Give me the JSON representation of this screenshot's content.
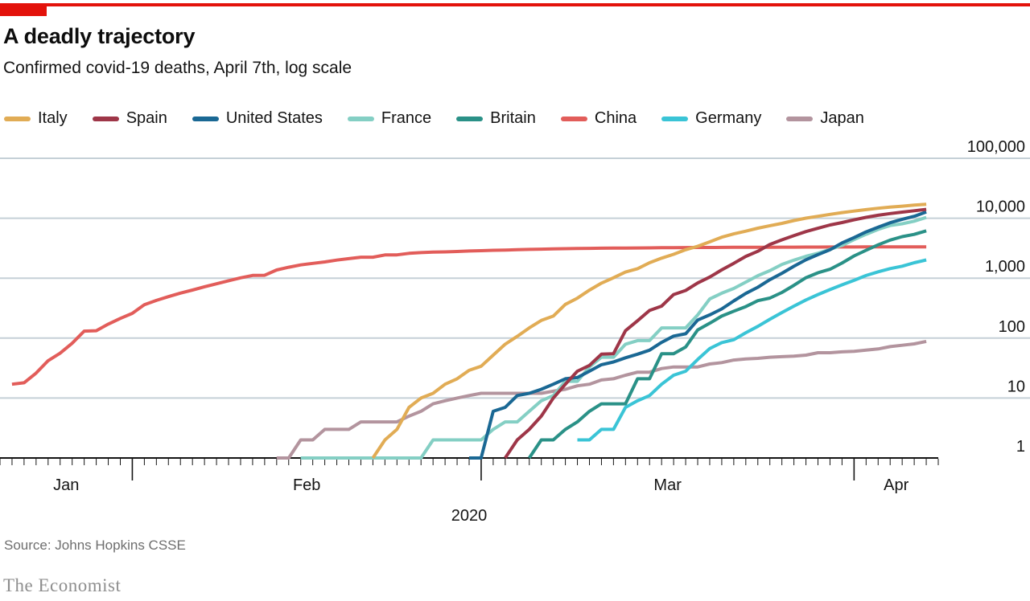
{
  "header": {
    "title": "A deadly trajectory",
    "subtitle": "Confirmed covid-19 deaths, April 7th, log scale"
  },
  "footer": {
    "source": "Source: Johns Hopkins CSSE",
    "brand": "The Economist"
  },
  "colors": {
    "accent_red": "#E3120B",
    "gridline": "#c5d0d7",
    "axis": "#141414",
    "tick_text": "#141414"
  },
  "chart_data": {
    "type": "line",
    "title": "A deadly trajectory",
    "subtitle": "Confirmed covid-19 deaths, April 7th, log scale",
    "y_scale": "log",
    "legend_position": "top",
    "grid": true,
    "y_ticks": [
      {
        "value": 1,
        "label": "1"
      },
      {
        "value": 10,
        "label": "10"
      },
      {
        "value": 100,
        "label": "100"
      },
      {
        "value": 1000,
        "label": "1,000"
      },
      {
        "value": 10000,
        "label": "10,000"
      },
      {
        "value": 100000,
        "label": "100,000"
      }
    ],
    "x_axis": {
      "start_date": "2020-01-21",
      "end_date": "2020-04-08",
      "month_labels": [
        "Jan",
        "Feb",
        "Mar",
        "Apr"
      ],
      "year_label": "2020"
    },
    "series": [
      {
        "name": "Italy",
        "color": "#E1AC55",
        "start": "2020-02-21",
        "values": [
          1,
          2,
          3,
          7,
          10,
          12,
          17,
          21,
          29,
          34,
          52,
          79,
          107,
          148,
          197,
          233,
          366,
          463,
          631,
          827,
          1016,
          1266,
          1441,
          1809,
          2158,
          2503,
          2978,
          3405,
          4032,
          4825,
          5476,
          6077,
          6820,
          7503,
          8215,
          9134,
          10023,
          10779,
          11591,
          12428,
          13155,
          13915,
          14681,
          15362,
          15887,
          16523,
          17127
        ]
      },
      {
        "name": "Spain",
        "color": "#9E3648",
        "start": "2020-03-03",
        "values": [
          1,
          2,
          3,
          5,
          10,
          17,
          28,
          35,
          54,
          55,
          133,
          195,
          289,
          342,
          533,
          623,
          830,
          1043,
          1375,
          1772,
          2311,
          2808,
          3647,
          4365,
          5138,
          5982,
          6803,
          7716,
          8464,
          9387,
          10348,
          11198,
          11947,
          12641,
          13341,
          14045
        ]
      },
      {
        "name": "United States",
        "color": "#1A6894",
        "start": "2020-02-29",
        "values": [
          1,
          1,
          6,
          7,
          11,
          12,
          14,
          17,
          21,
          22,
          28,
          36,
          40,
          47,
          54,
          63,
          85,
          108,
          118,
          200,
          244,
          307,
          417,
          557,
          706,
          942,
          1209,
          1581,
          2026,
          2467,
          2978,
          3873,
          4757,
          5926,
          7087,
          8407,
          9619,
          10783,
          12722
        ]
      },
      {
        "name": "France",
        "color": "#84CFC4",
        "start": "2020-02-15",
        "values": [
          1,
          1,
          1,
          1,
          1,
          1,
          1,
          1,
          1,
          1,
          1,
          2,
          2,
          2,
          2,
          2,
          3,
          4,
          4,
          6,
          9,
          11,
          19,
          19,
          33,
          48,
          48,
          79,
          91,
          91,
          148,
          148,
          148,
          243,
          450,
          562,
          674,
          860,
          1100,
          1331,
          1696,
          1995,
          2314,
          2606,
          3024,
          3523,
          4403,
          5387,
          6507,
          7560,
          8078,
          8911,
          10328
        ]
      },
      {
        "name": "Britain",
        "color": "#2A9187",
        "start": "2020-03-05",
        "values": [
          1,
          2,
          2,
          3,
          4,
          6,
          8,
          8,
          8,
          21,
          21,
          55,
          55,
          71,
          137,
          177,
          233,
          281,
          335,
          422,
          465,
          578,
          759,
          1019,
          1228,
          1408,
          1789,
          2352,
          2921,
          3605,
          4313,
          4934,
          5373,
          6159
        ]
      },
      {
        "name": "China",
        "color": "#E25D5A",
        "start": "2020-01-22",
        "values": [
          17,
          18,
          26,
          42,
          56,
          82,
          131,
          133,
          171,
          213,
          259,
          361,
          425,
          491,
          563,
          633,
          718,
          805,
          905,
          1012,
          1112,
          1117,
          1369,
          1521,
          1663,
          1766,
          1864,
          2003,
          2116,
          2238,
          2238,
          2443,
          2445,
          2595,
          2665,
          2717,
          2746,
          2790,
          2837,
          2872,
          2914,
          2947,
          2983,
          3015,
          3044,
          3072,
          3100,
          3123,
          3139,
          3161,
          3172,
          3180,
          3194,
          3203,
          3217,
          3230,
          3241,
          3249,
          3253,
          3259,
          3274,
          3274,
          3281,
          3285,
          3291,
          3296,
          3299,
          3304,
          3308,
          3309,
          3316,
          3322,
          3326,
          3330,
          3333,
          3335,
          3335
        ]
      },
      {
        "name": "Germany",
        "color": "#3AC4D6",
        "start": "2020-03-09",
        "values": [
          2,
          2,
          3,
          3,
          7,
          9,
          11,
          17,
          24,
          28,
          44,
          67,
          84,
          94,
          123,
          157,
          206,
          267,
          342,
          433,
          533,
          645,
          775,
          920,
          1107,
          1275,
          1444,
          1584,
          1810,
          2016
        ]
      },
      {
        "name": "Japan",
        "color": "#B3949E",
        "start": "2020-02-13",
        "values": [
          1,
          1,
          2,
          2,
          3,
          3,
          3,
          4,
          4,
          4,
          4,
          5,
          6,
          8,
          9,
          10,
          11,
          12,
          12,
          12,
          12,
          12,
          12,
          13,
          14,
          16,
          17,
          20,
          21,
          24,
          27,
          27,
          31,
          33,
          33,
          33,
          37,
          39,
          43,
          45,
          46,
          48,
          49,
          50,
          52,
          57,
          57,
          59,
          60,
          63,
          66,
          72,
          76,
          80,
          88
        ]
      }
    ],
    "draw_order": [
      "China",
      "Japan",
      "France",
      "Germany",
      "Britain",
      "United States",
      "Spain",
      "Italy"
    ]
  }
}
